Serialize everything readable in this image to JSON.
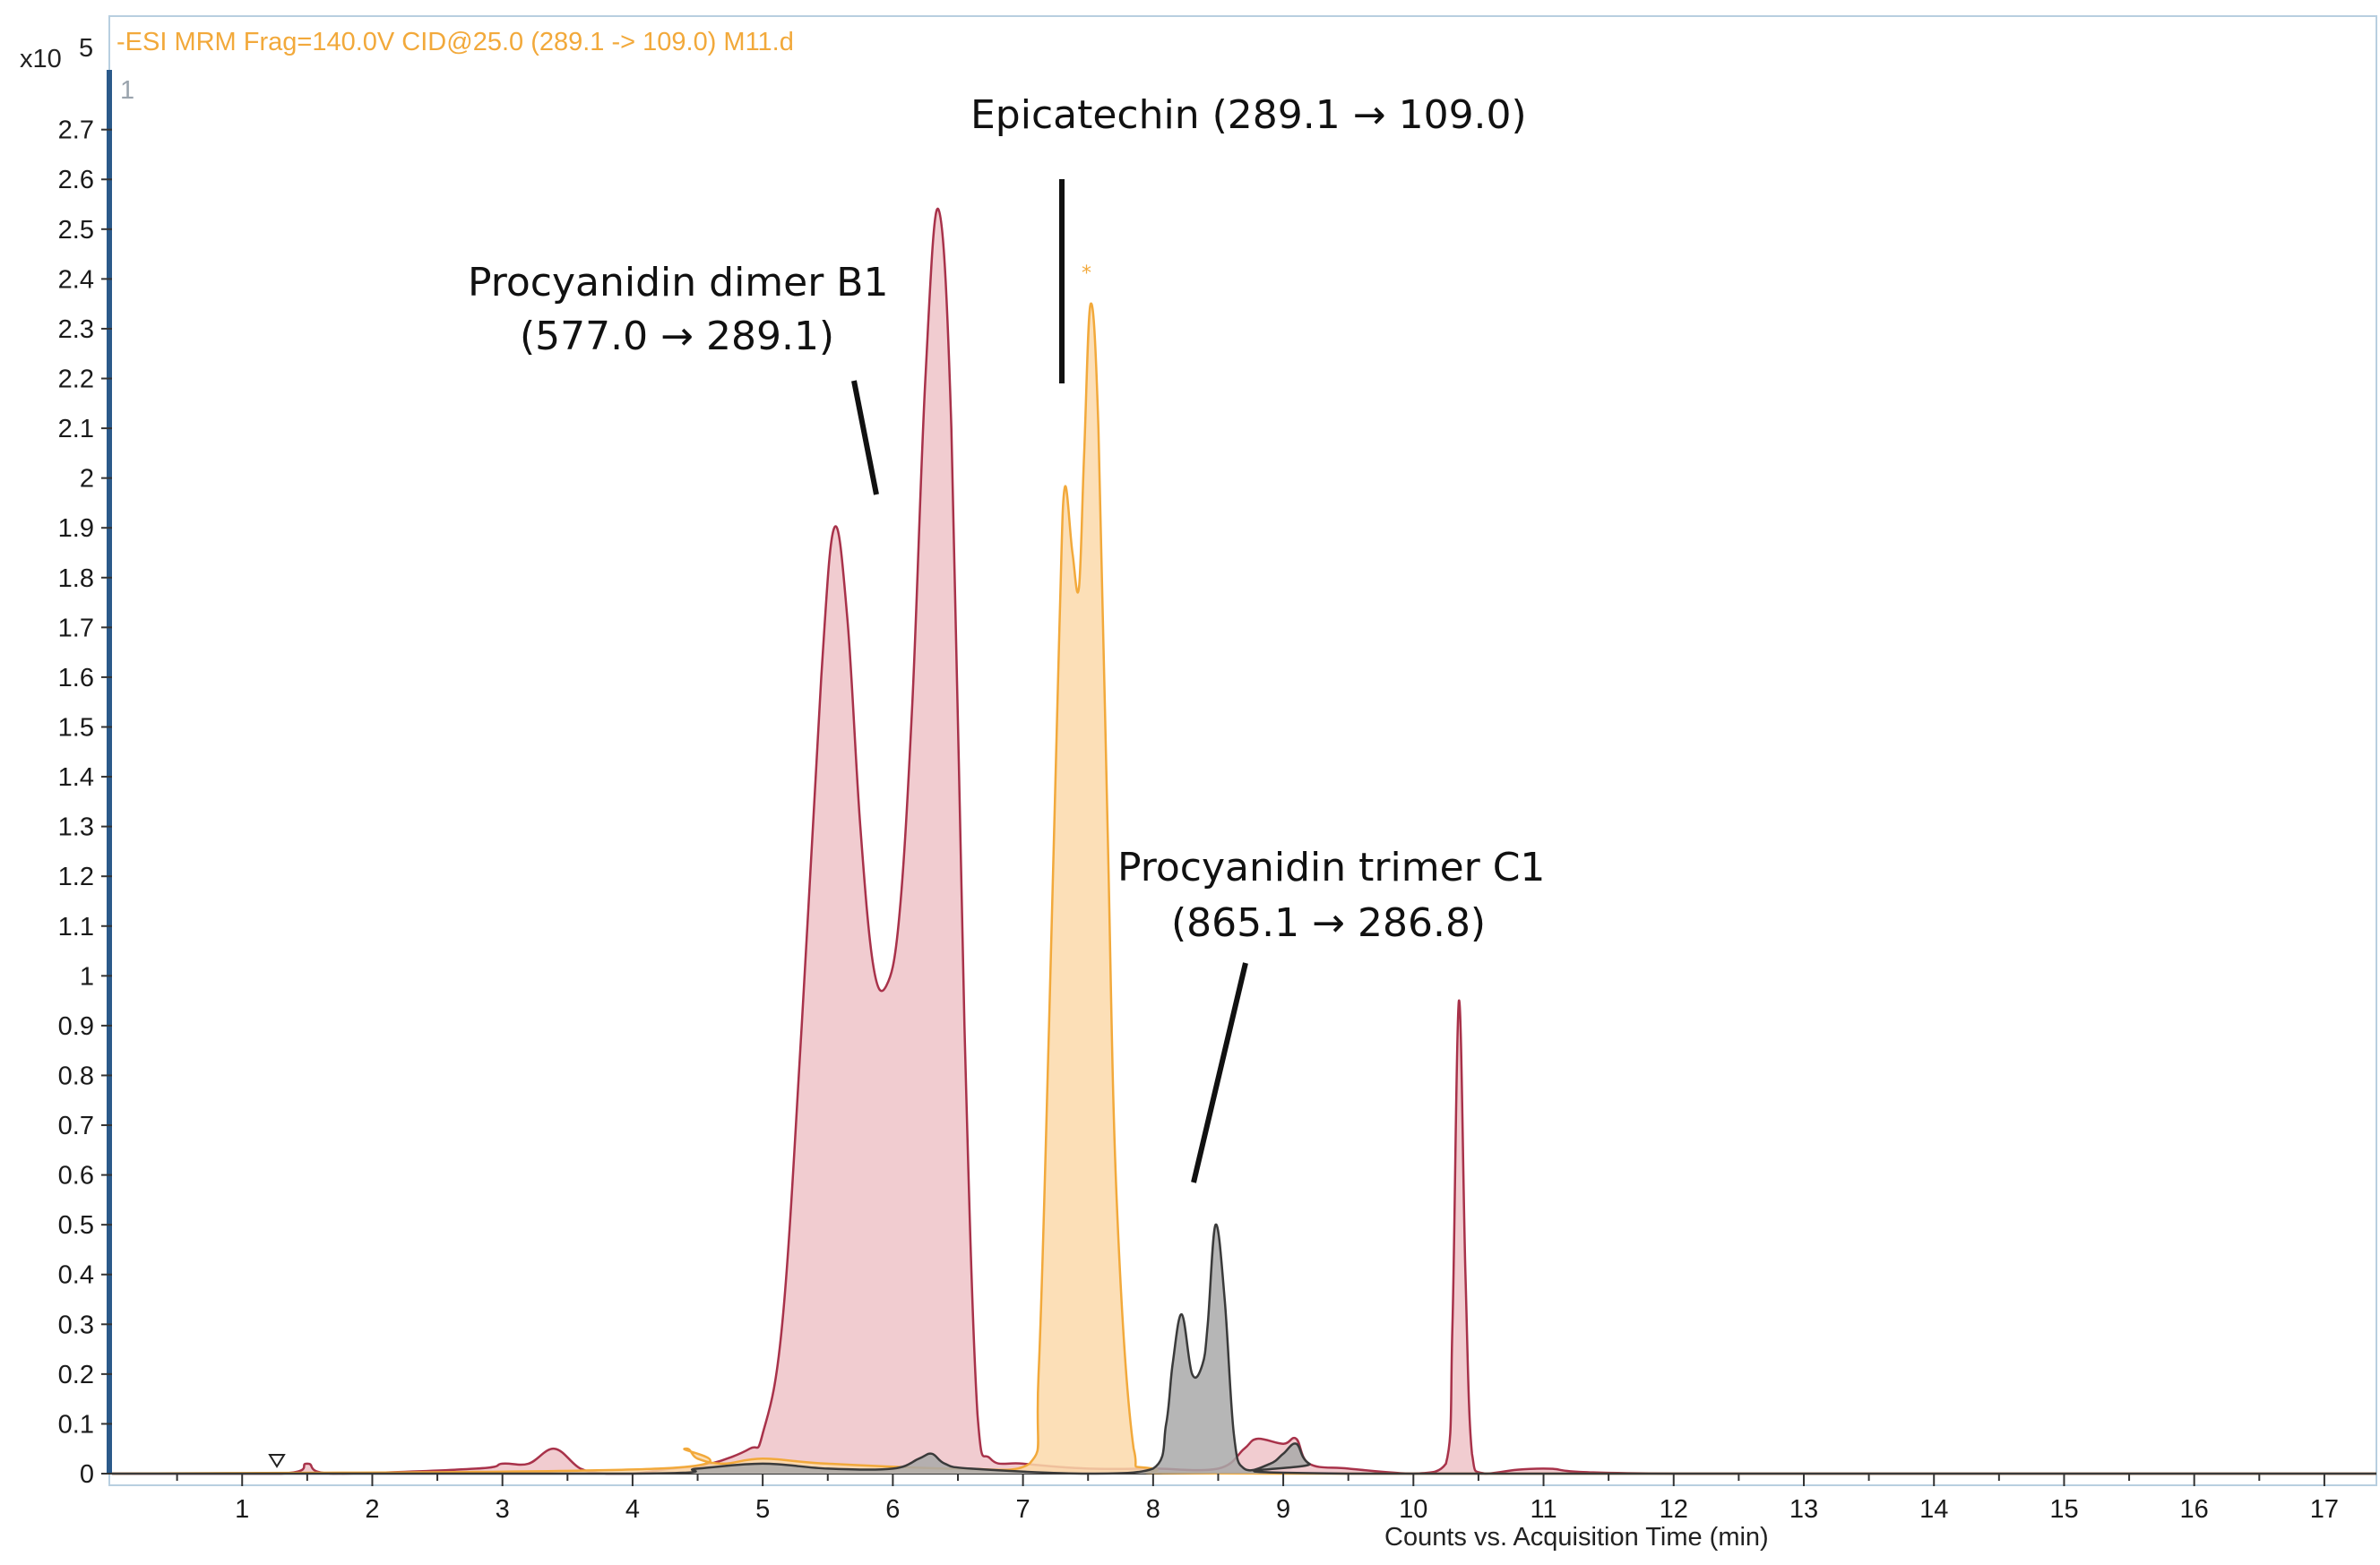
{
  "header": {
    "scan_label": "-ESI MRM Frag=140.0V CID@25.0 (289.1 -> 109.0) M11.d",
    "y_multiplier_base": "x10",
    "y_multiplier_exp": "5",
    "panel_index": "1"
  },
  "chart_data": {
    "type": "area",
    "xlabel": "Counts vs. Acquisition Time (min)",
    "ylabel": "",
    "xlim": [
      0,
      17.4
    ],
    "ylim": [
      0,
      2.82
    ],
    "y_multiplier": "x10^5",
    "grid": false,
    "x_ticks": [
      "1",
      "2",
      "3",
      "4",
      "5",
      "6",
      "7",
      "8",
      "9",
      "10",
      "11",
      "12",
      "13",
      "14",
      "15",
      "16",
      "17"
    ],
    "y_ticks": [
      "0",
      "0.1",
      "0.2",
      "0.3",
      "0.4",
      "0.5",
      "0.6",
      "0.7",
      "0.8",
      "0.9",
      "1",
      "1.1",
      "1.2",
      "1.3",
      "1.4",
      "1.5",
      "1.6",
      "1.7",
      "1.8",
      "1.9",
      "2",
      "2.1",
      "2.2",
      "2.3",
      "2.4",
      "2.5",
      "2.6",
      "2.7"
    ],
    "series": [
      {
        "color": "#a8324a",
        "fill": "#efc3c8",
        "x": [
          0,
          1.3,
          1.5,
          1.7,
          2.8,
          3.0,
          3.2,
          3.4,
          3.6,
          3.8,
          4.0,
          4.3,
          4.6,
          4.9,
          5.0,
          5.15,
          5.3,
          5.45,
          5.55,
          5.65,
          5.75,
          5.85,
          5.95,
          6.05,
          6.15,
          6.25,
          6.35,
          6.45,
          6.55,
          6.65,
          6.75,
          7.0,
          7.5,
          8.0,
          8.5,
          8.7,
          8.8,
          9.0,
          9.1,
          9.2,
          9.5,
          10.0,
          10.25,
          10.3,
          10.35,
          10.4,
          10.45,
          10.55,
          11.0,
          12.0,
          17.4
        ],
        "values": [
          0,
          0,
          0.02,
          0,
          0.01,
          0.02,
          0.02,
          0.05,
          0.01,
          0.0,
          0.0,
          0.01,
          0.02,
          0.05,
          0.08,
          0.3,
          0.9,
          1.6,
          1.9,
          1.72,
          1.3,
          1.02,
          0.98,
          1.12,
          1.55,
          2.2,
          2.54,
          2.1,
          0.9,
          0.12,
          0.03,
          0.02,
          0.01,
          0.01,
          0.01,
          0.05,
          0.07,
          0.06,
          0.07,
          0.02,
          0.01,
          0.0,
          0.02,
          0.3,
          0.95,
          0.4,
          0.04,
          0.0,
          0.01,
          0.0,
          0
        ]
      },
      {
        "color": "#f2a93b",
        "fill": "#fcd9aa",
        "x": [
          0,
          4.2,
          4.4,
          4.5,
          4.7,
          5.0,
          5.5,
          6.5,
          7.05,
          7.12,
          7.2,
          7.28,
          7.32,
          7.38,
          7.43,
          7.47,
          7.52,
          7.58,
          7.65,
          7.72,
          7.85,
          8.0,
          9.0,
          17.4
        ],
        "values": [
          0,
          0.01,
          0.05,
          0.03,
          0.02,
          0.03,
          0.02,
          0.01,
          0.02,
          0.2,
          0.9,
          1.7,
          1.98,
          1.85,
          1.78,
          2.05,
          2.35,
          2.1,
          1.3,
          0.55,
          0.05,
          0.01,
          0.0,
          0
        ]
      },
      {
        "color": "#3a3a3a",
        "fill": "#a9a9a9",
        "x": [
          0,
          4.0,
          4.5,
          5.0,
          5.5,
          6.0,
          6.2,
          6.3,
          6.4,
          6.6,
          7.5,
          8.0,
          8.1,
          8.15,
          8.22,
          8.3,
          8.38,
          8.42,
          8.48,
          8.55,
          8.62,
          8.7,
          8.9,
          9.0,
          9.1,
          9.2,
          9.5,
          17.4
        ],
        "values": [
          0,
          0.0,
          0.01,
          0.02,
          0.01,
          0.01,
          0.03,
          0.04,
          0.02,
          0.01,
          0.0,
          0.01,
          0.1,
          0.22,
          0.32,
          0.2,
          0.22,
          0.3,
          0.5,
          0.35,
          0.08,
          0.01,
          0.02,
          0.04,
          0.06,
          0.02,
          0.0,
          0
        ]
      }
    ],
    "annotations": [
      {
        "text": "Epicatechin (289.1 → 109.0)"
      },
      {
        "text": "Procyanidin dimer B1"
      },
      {
        "text": "(577.0 → 289.1)"
      },
      {
        "text": "Procyanidin trimer C1"
      },
      {
        "text": "(865.1 → 286.8)"
      }
    ]
  }
}
